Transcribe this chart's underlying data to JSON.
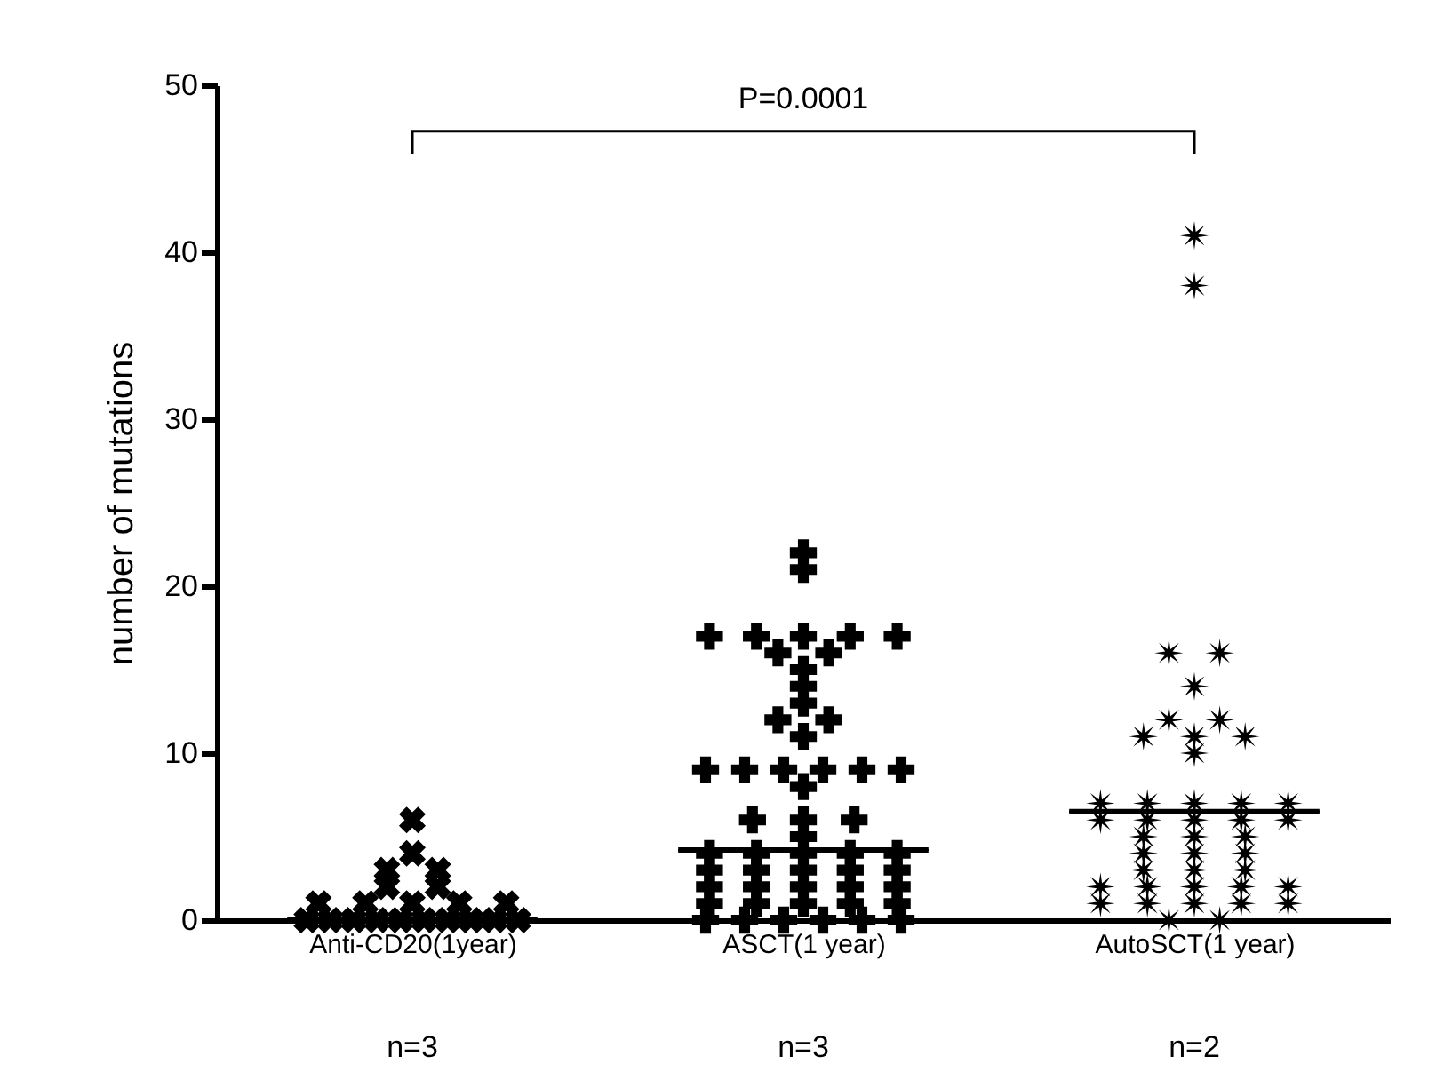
{
  "chart_data": {
    "type": "scatter",
    "ylabel": "number of mutations",
    "categories": [
      "Anti-CD20(1year)",
      "ASCT(1 year)",
      "AutoSCT(1 year)"
    ],
    "ylim": [
      0,
      50
    ],
    "yticks": [
      0,
      10,
      20,
      30,
      40,
      50
    ],
    "series": [
      {
        "type": "scatter",
        "marker": "cross",
        "color": "#000000",
        "x": [
          "Anti-CD20(1year)",
          "Anti-CD20(1year)",
          "Anti-CD20(1year)",
          "Anti-CD20(1year)",
          "Anti-CD20(1year)",
          "Anti-CD20(1year)",
          "Anti-CD20(1year)",
          "Anti-CD20(1year)",
          "Anti-CD20(1year)",
          "Anti-CD20(1year)",
          "Anti-CD20(1year)",
          "Anti-CD20(1year)",
          "Anti-CD20(1year)",
          "Anti-CD20(1year)",
          "Anti-CD20(1year)",
          "Anti-CD20(1year)",
          "Anti-CD20(1year)",
          "Anti-CD20(1year)",
          "Anti-CD20(1year)",
          "Anti-CD20(1year)",
          "Anti-CD20(1year)"
        ],
        "values": [
          6,
          4,
          3,
          3,
          2,
          2,
          1,
          1,
          1,
          1,
          1,
          0,
          0,
          0,
          0,
          0,
          0,
          0,
          0,
          0,
          0
        ]
      },
      {
        "type": "scatter",
        "marker": "plus",
        "color": "#000000",
        "x": [
          "ASCT(1 year)",
          "ASCT(1 year)",
          "ASCT(1 year)",
          "ASCT(1 year)",
          "ASCT(1 year)",
          "ASCT(1 year)",
          "ASCT(1 year)",
          "ASCT(1 year)",
          "ASCT(1 year)",
          "ASCT(1 year)",
          "ASCT(1 year)",
          "ASCT(1 year)",
          "ASCT(1 year)",
          "ASCT(1 year)",
          "ASCT(1 year)",
          "ASCT(1 year)",
          "ASCT(1 year)",
          "ASCT(1 year)",
          "ASCT(1 year)",
          "ASCT(1 year)",
          "ASCT(1 year)",
          "ASCT(1 year)",
          "ASCT(1 year)",
          "ASCT(1 year)",
          "ASCT(1 year)",
          "ASCT(1 year)",
          "ASCT(1 year)",
          "ASCT(1 year)",
          "ASCT(1 year)",
          "ASCT(1 year)",
          "ASCT(1 year)",
          "ASCT(1 year)",
          "ASCT(1 year)",
          "ASCT(1 year)",
          "ASCT(1 year)",
          "ASCT(1 year)",
          "ASCT(1 year)",
          "ASCT(1 year)",
          "ASCT(1 year)",
          "ASCT(1 year)",
          "ASCT(1 year)",
          "ASCT(1 year)",
          "ASCT(1 year)",
          "ASCT(1 year)",
          "ASCT(1 year)",
          "ASCT(1 year)",
          "ASCT(1 year)",
          "ASCT(1 year)",
          "ASCT(1 year)",
          "ASCT(1 year)",
          "ASCT(1 year)",
          "ASCT(1 year)"
        ],
        "values": [
          22,
          21,
          17,
          17,
          17,
          17,
          17,
          16,
          16,
          15,
          14,
          13,
          12,
          12,
          11,
          9,
          9,
          9,
          9,
          9,
          9,
          8,
          6,
          6,
          6,
          5,
          4,
          4,
          4,
          4,
          4,
          3,
          3,
          3,
          3,
          3,
          2,
          2,
          2,
          2,
          2,
          1,
          1,
          1,
          1,
          1,
          0,
          0,
          0,
          0,
          0,
          0
        ]
      },
      {
        "type": "scatter",
        "marker": "star",
        "color": "#000000",
        "x": [
          "AutoSCT(1 year)",
          "AutoSCT(1 year)",
          "AutoSCT(1 year)",
          "AutoSCT(1 year)",
          "AutoSCT(1 year)",
          "AutoSCT(1 year)",
          "AutoSCT(1 year)",
          "AutoSCT(1 year)",
          "AutoSCT(1 year)",
          "AutoSCT(1 year)",
          "AutoSCT(1 year)",
          "AutoSCT(1 year)",
          "AutoSCT(1 year)",
          "AutoSCT(1 year)",
          "AutoSCT(1 year)",
          "AutoSCT(1 year)",
          "AutoSCT(1 year)",
          "AutoSCT(1 year)",
          "AutoSCT(1 year)",
          "AutoSCT(1 year)",
          "AutoSCT(1 year)",
          "AutoSCT(1 year)",
          "AutoSCT(1 year)",
          "AutoSCT(1 year)",
          "AutoSCT(1 year)",
          "AutoSCT(1 year)",
          "AutoSCT(1 year)",
          "AutoSCT(1 year)",
          "AutoSCT(1 year)",
          "AutoSCT(1 year)",
          "AutoSCT(1 year)",
          "AutoSCT(1 year)",
          "AutoSCT(1 year)",
          "AutoSCT(1 year)",
          "AutoSCT(1 year)",
          "AutoSCT(1 year)",
          "AutoSCT(1 year)",
          "AutoSCT(1 year)",
          "AutoSCT(1 year)",
          "AutoSCT(1 year)",
          "AutoSCT(1 year)",
          "AutoSCT(1 year)"
        ],
        "values": [
          41,
          38,
          16,
          16,
          14,
          12,
          12,
          11,
          11,
          11,
          10,
          7,
          7,
          7,
          7,
          7,
          6,
          6,
          6,
          6,
          6,
          5,
          5,
          5,
          4,
          4,
          4,
          3,
          3,
          3,
          2,
          2,
          2,
          2,
          2,
          1,
          1,
          1,
          1,
          1,
          0,
          0
        ]
      },
      {
        "type": "box",
        "color": "#000000",
        "boxes": [
          {
            "low": 0,
            "q1": 0,
            "median": 0,
            "q3": 0,
            "high": 0
          },
          {
            "low": 4.2,
            "q1": 4.2,
            "median": 4.2,
            "q3": 4.2,
            "high": 4.2
          },
          {
            "low": 6.5,
            "q1": 6.5,
            "median": 6.5,
            "q3": 6.5,
            "high": 6.5
          }
        ]
      }
    ],
    "annotations": [
      "P=0.0001",
      "n=3",
      "n=3",
      "n=2"
    ]
  }
}
